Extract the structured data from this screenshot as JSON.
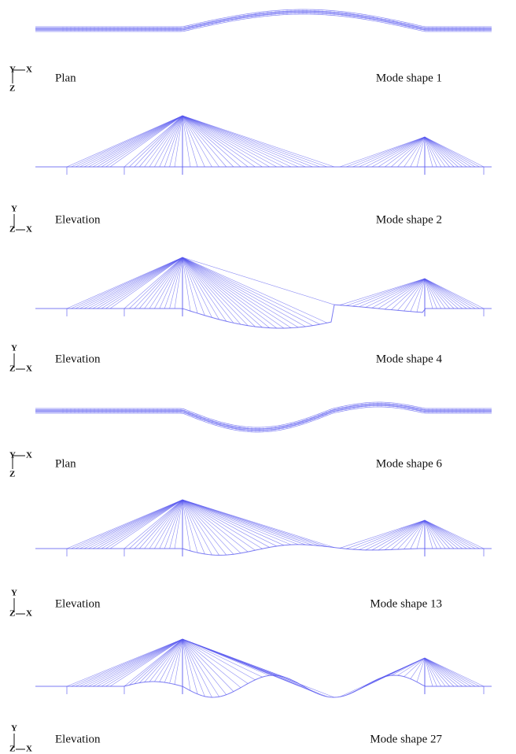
{
  "panels": [
    {
      "view": "Plan",
      "mode": "Mode shape 1",
      "axes": {
        "y": "Y",
        "x": "X",
        "z": "Z"
      }
    },
    {
      "view": "Elevation",
      "mode": "Mode shape 2",
      "axes": {
        "y": "Y",
        "x": "X",
        "z": "Z"
      }
    },
    {
      "view": "Elevation",
      "mode": "Mode shape 4",
      "axes": {
        "y": "Y",
        "x": "X",
        "z": "Z"
      }
    },
    {
      "view": "Plan",
      "mode": "Mode shape 6",
      "axes": {
        "y": "Y",
        "x": "X",
        "z": "Z"
      }
    },
    {
      "view": "Elevation",
      "mode": "Mode shape 13",
      "axes": {
        "y": "Y",
        "x": "X",
        "z": "Z"
      }
    },
    {
      "view": "Elevation",
      "mode": "Mode shape 27",
      "axes": {
        "y": "Y",
        "x": "X",
        "z": "Z"
      }
    }
  ]
}
